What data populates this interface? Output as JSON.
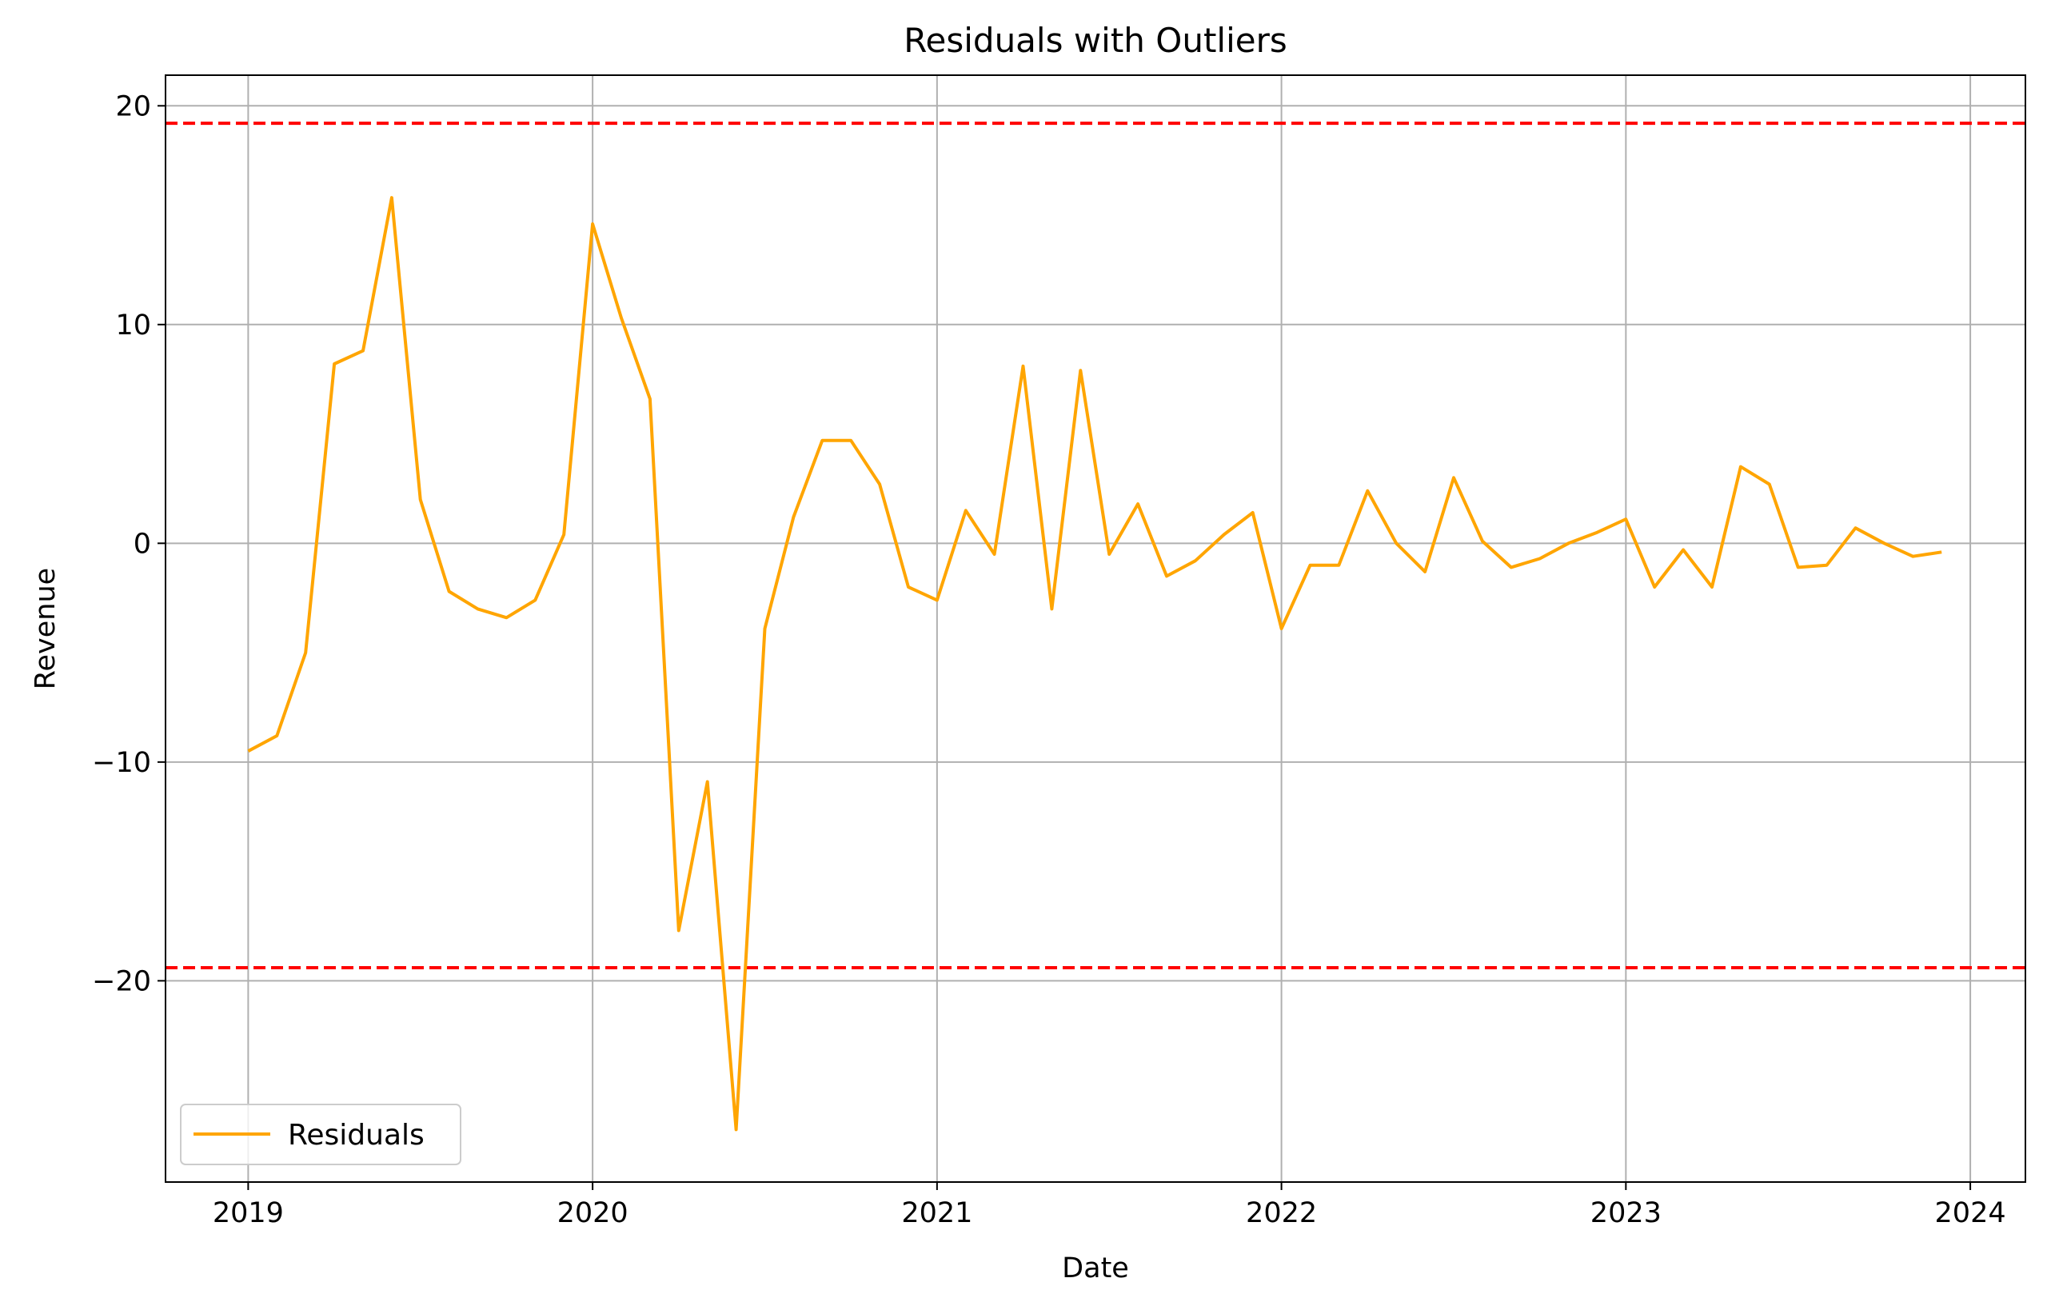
{
  "chart_data": {
    "type": "line",
    "title": "Residuals with Outliers",
    "xlabel": "Date",
    "ylabel": "Revenue",
    "x_ticks": [
      "2019",
      "2020",
      "2021",
      "2022",
      "2023",
      "2024"
    ],
    "y_ticks": [
      20,
      10,
      0,
      -10,
      -20
    ],
    "y_tick_labels": [
      "20",
      "10",
      "0",
      "−10",
      "−20"
    ],
    "xlim": [
      2018.76,
      2024.16
    ],
    "ylim": [
      -29.2,
      21.4
    ],
    "grid": true,
    "legend_position": "lower-left",
    "x_start": "2019-01",
    "x_step": "monthly",
    "series": [
      {
        "name": "Residuals",
        "color": "#FFA500",
        "values": [
          -9.5,
          -8.8,
          -5.0,
          8.2,
          8.8,
          15.8,
          2.0,
          -2.2,
          -3.0,
          -3.4,
          -2.6,
          0.4,
          14.6,
          10.3,
          6.6,
          -17.7,
          -10.9,
          -26.8,
          -3.9,
          1.2,
          4.7,
          4.7,
          2.7,
          -2.0,
          -2.6,
          1.5,
          -0.5,
          8.1,
          -3.0,
          7.9,
          -0.5,
          1.8,
          -1.5,
          -0.8,
          0.4,
          1.4,
          -3.9,
          -1.0,
          -1.0,
          2.4,
          0.0,
          -1.3,
          3.0,
          0.1,
          -1.1,
          -0.7,
          0.0,
          0.5,
          1.1,
          -2.0,
          -0.3,
          -2.0,
          3.5,
          2.7,
          -1.1,
          -1.0,
          0.7,
          0.0,
          -0.6,
          -0.4
        ]
      }
    ],
    "thresholds": [
      {
        "name": "upper-threshold",
        "value": 19.2,
        "color": "#FF0000",
        "style": "dashed"
      },
      {
        "name": "lower-threshold",
        "value": -19.4,
        "color": "#FF0000",
        "style": "dashed"
      }
    ]
  }
}
